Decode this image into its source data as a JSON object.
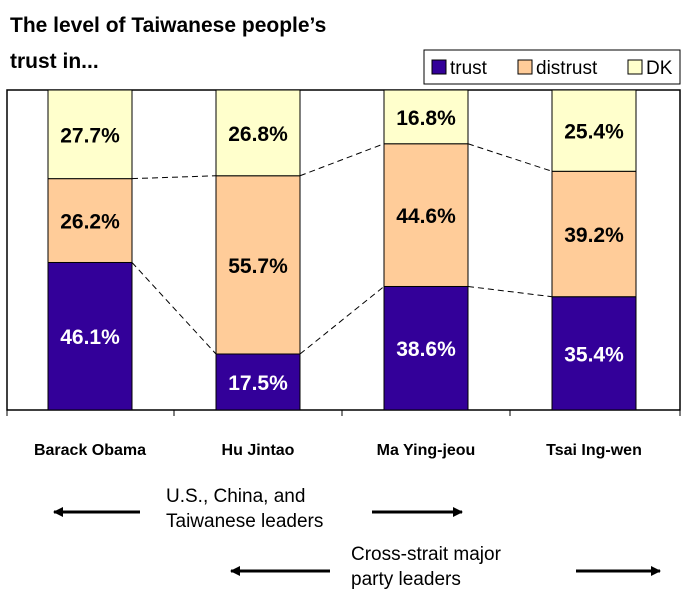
{
  "chart_data": {
    "type": "bar",
    "stacked": true,
    "title_line1": "The level of Taiwanese people’s",
    "title_line2": "trust in...",
    "categories": [
      "Barack Obama",
      "Hu Jintao",
      "Ma Ying-jeou",
      "Tsai Ing-wen"
    ],
    "series": [
      {
        "name": "trust",
        "values": [
          46.1,
          17.5,
          38.6,
          35.4
        ],
        "labels": [
          "46.1%",
          "17.5%",
          "38.6%",
          "35.4%"
        ],
        "color": "#330099",
        "label_color": "#ffffff"
      },
      {
        "name": "distrust",
        "values": [
          26.2,
          55.7,
          44.6,
          39.2
        ],
        "labels": [
          "26.2%",
          "55.7%",
          "44.6%",
          "39.2%"
        ],
        "color": "#ffcc99",
        "label_color": "#000000"
      },
      {
        "name": "DK",
        "values": [
          27.7,
          26.8,
          16.8,
          25.4
        ],
        "labels": [
          "27.7%",
          "26.8%",
          "16.8%",
          "25.4%"
        ],
        "color": "#ffffcc",
        "label_color": "#000000"
      }
    ],
    "ylim": [
      0,
      100
    ],
    "grid": false,
    "legend_position": "top-right",
    "annotations": [
      {
        "lines": [
          "U.S., China, and",
          "Taiwanese leaders"
        ]
      },
      {
        "lines": [
          "Cross-strait major",
          "party leaders"
        ]
      }
    ]
  }
}
